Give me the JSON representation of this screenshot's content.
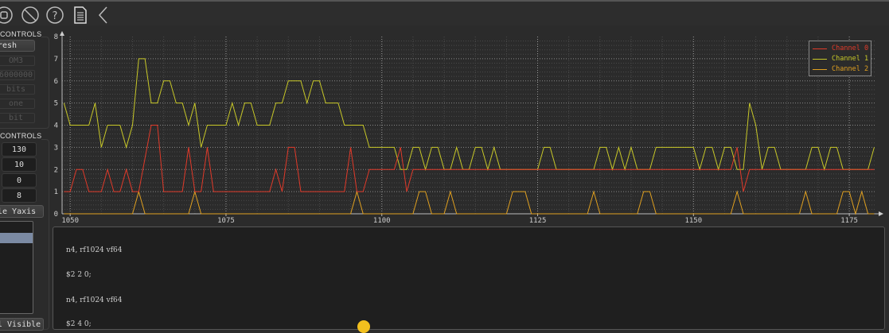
{
  "toolbar": {
    "icons": [
      "stop-icon",
      "clear-icon",
      "help-icon",
      "document-icon",
      "back-chevron-icon"
    ]
  },
  "serial_controls": {
    "title": "CONTROLS",
    "refresh_label": "resh",
    "port": "OM3",
    "baud": "6000000",
    "data_bits": "bits",
    "stop_bits": "one",
    "parity": "bit"
  },
  "plot_controls": {
    "title": "CONTROLS",
    "values": [
      "130",
      "10",
      "0",
      "8"
    ],
    "yaxis_button": "le Yaxis",
    "visible_button": "l Visible"
  },
  "console": {
    "lines": [
      "n4, rf1024 vf64",
      "$2 2 0;",
      "n4, rf1024 vf64",
      "$2 4 0;"
    ]
  },
  "colors": {
    "channel0": "#e03a2a",
    "channel1": "#c8c828",
    "channel2": "#e0a020",
    "background": "#2b2b2b"
  },
  "chart_data": {
    "type": "line",
    "grid": true,
    "legend": "top-right",
    "xlim": [
      1048.7,
      1179.2
    ],
    "ylim": [
      0,
      8
    ],
    "xticks": [
      1050,
      1075,
      1100,
      1125,
      1150,
      1175
    ],
    "yticks": [
      0,
      1,
      2,
      3,
      4,
      5,
      6,
      7,
      8
    ],
    "series": [
      {
        "name": "Channel 0",
        "color": "#e03a2a",
        "points": [
          [
            1049,
            1
          ],
          [
            1050,
            1
          ],
          [
            1051,
            2
          ],
          [
            1052,
            2
          ],
          [
            1053,
            1
          ],
          [
            1055,
            1
          ],
          [
            1056,
            2
          ],
          [
            1057,
            1
          ],
          [
            1058,
            1
          ],
          [
            1059,
            2
          ],
          [
            1060,
            1
          ],
          [
            1061,
            1
          ],
          [
            1063,
            4
          ],
          [
            1064,
            4
          ],
          [
            1065,
            1
          ],
          [
            1068,
            1
          ],
          [
            1069,
            3
          ],
          [
            1070,
            1
          ],
          [
            1071,
            1
          ],
          [
            1072,
            3
          ],
          [
            1073,
            1
          ],
          [
            1082,
            1
          ],
          [
            1083,
            2
          ],
          [
            1084,
            1
          ],
          [
            1085,
            3
          ],
          [
            1086,
            3
          ],
          [
            1087,
            1
          ],
          [
            1094,
            1
          ],
          [
            1095,
            3
          ],
          [
            1096,
            1
          ],
          [
            1097,
            1
          ],
          [
            1098,
            2
          ],
          [
            1102,
            2
          ],
          [
            1103,
            3
          ],
          [
            1104,
            1
          ],
          [
            1105,
            2
          ],
          [
            1156,
            2
          ],
          [
            1157,
            3
          ],
          [
            1158,
            1
          ],
          [
            1159,
            2
          ],
          [
            1179,
            2
          ]
        ]
      },
      {
        "name": "Channel 1",
        "color": "#c8c828",
        "points": [
          [
            1049,
            5
          ],
          [
            1050,
            4
          ],
          [
            1053,
            4
          ],
          [
            1054,
            5
          ],
          [
            1055,
            3
          ],
          [
            1056,
            4
          ],
          [
            1058,
            4
          ],
          [
            1059,
            3
          ],
          [
            1060,
            4
          ],
          [
            1061,
            7
          ],
          [
            1062,
            7
          ],
          [
            1063,
            5
          ],
          [
            1064,
            5
          ],
          [
            1065,
            6
          ],
          [
            1066,
            6
          ],
          [
            1067,
            5
          ],
          [
            1068,
            5
          ],
          [
            1069,
            4
          ],
          [
            1070,
            5
          ],
          [
            1071,
            3
          ],
          [
            1072,
            4
          ],
          [
            1075,
            4
          ],
          [
            1076,
            5
          ],
          [
            1077,
            4
          ],
          [
            1078,
            5
          ],
          [
            1079,
            5
          ],
          [
            1080,
            4
          ],
          [
            1082,
            4
          ],
          [
            1083,
            5
          ],
          [
            1084,
            5
          ],
          [
            1085,
            6
          ],
          [
            1087,
            6
          ],
          [
            1088,
            5
          ],
          [
            1089,
            6
          ],
          [
            1090,
            6
          ],
          [
            1091,
            5
          ],
          [
            1093,
            5
          ],
          [
            1094,
            4
          ],
          [
            1097,
            4
          ],
          [
            1098,
            3
          ],
          [
            1102,
            3
          ],
          [
            1103,
            2
          ],
          [
            1104,
            2
          ],
          [
            1105,
            3
          ],
          [
            1106,
            3
          ],
          [
            1107,
            2
          ],
          [
            1108,
            3
          ],
          [
            1109,
            3
          ],
          [
            1110,
            2
          ],
          [
            1111,
            2
          ],
          [
            1112,
            3
          ],
          [
            1113,
            2
          ],
          [
            1114,
            2
          ],
          [
            1115,
            3
          ],
          [
            1116,
            3
          ],
          [
            1117,
            2
          ],
          [
            1118,
            3
          ],
          [
            1119,
            2
          ],
          [
            1125,
            2
          ],
          [
            1126,
            3
          ],
          [
            1127,
            3
          ],
          [
            1128,
            2
          ],
          [
            1134,
            2
          ],
          [
            1135,
            3
          ],
          [
            1136,
            3
          ],
          [
            1137,
            2
          ],
          [
            1138,
            3
          ],
          [
            1139,
            2
          ],
          [
            1140,
            3
          ],
          [
            1141,
            2
          ],
          [
            1143,
            2
          ],
          [
            1144,
            3
          ],
          [
            1150,
            3
          ],
          [
            1151,
            2
          ],
          [
            1152,
            3
          ],
          [
            1153,
            3
          ],
          [
            1154,
            2
          ],
          [
            1155,
            3
          ],
          [
            1156,
            3
          ],
          [
            1157,
            2
          ],
          [
            1158,
            2
          ],
          [
            1159,
            5
          ],
          [
            1160,
            4
          ],
          [
            1161,
            2
          ],
          [
            1162,
            3
          ],
          [
            1163,
            3
          ],
          [
            1164,
            2
          ],
          [
            1168,
            2
          ],
          [
            1169,
            3
          ],
          [
            1170,
            3
          ],
          [
            1171,
            2
          ],
          [
            1172,
            3
          ],
          [
            1173,
            3
          ],
          [
            1174,
            2
          ],
          [
            1178,
            2
          ],
          [
            1179,
            3
          ]
        ]
      },
      {
        "name": "Channel 2",
        "color": "#e0a020",
        "points": [
          [
            1049,
            0
          ],
          [
            1060,
            0
          ],
          [
            1061,
            1
          ],
          [
            1062,
            0
          ],
          [
            1069,
            0
          ],
          [
            1070,
            1
          ],
          [
            1071,
            0
          ],
          [
            1095,
            0
          ],
          [
            1096,
            1
          ],
          [
            1097,
            0
          ],
          [
            1105,
            0
          ],
          [
            1106,
            1
          ],
          [
            1107,
            1
          ],
          [
            1108,
            0
          ],
          [
            1110,
            0
          ],
          [
            1111,
            1
          ],
          [
            1112,
            0
          ],
          [
            1120,
            0
          ],
          [
            1121,
            1
          ],
          [
            1123,
            1
          ],
          [
            1124,
            0
          ],
          [
            1133,
            0
          ],
          [
            1134,
            1
          ],
          [
            1135,
            0
          ],
          [
            1141,
            0
          ],
          [
            1142,
            1
          ],
          [
            1143,
            1
          ],
          [
            1144,
            0
          ],
          [
            1156,
            0
          ],
          [
            1157,
            1
          ],
          [
            1158,
            0
          ],
          [
            1167,
            0
          ],
          [
            1168,
            1
          ],
          [
            1169,
            0
          ],
          [
            1173,
            0
          ],
          [
            1174,
            1
          ],
          [
            1175,
            1
          ],
          [
            1176,
            0
          ],
          [
            1177,
            1
          ],
          [
            1178,
            0
          ],
          [
            1179,
            0
          ]
        ]
      }
    ]
  }
}
